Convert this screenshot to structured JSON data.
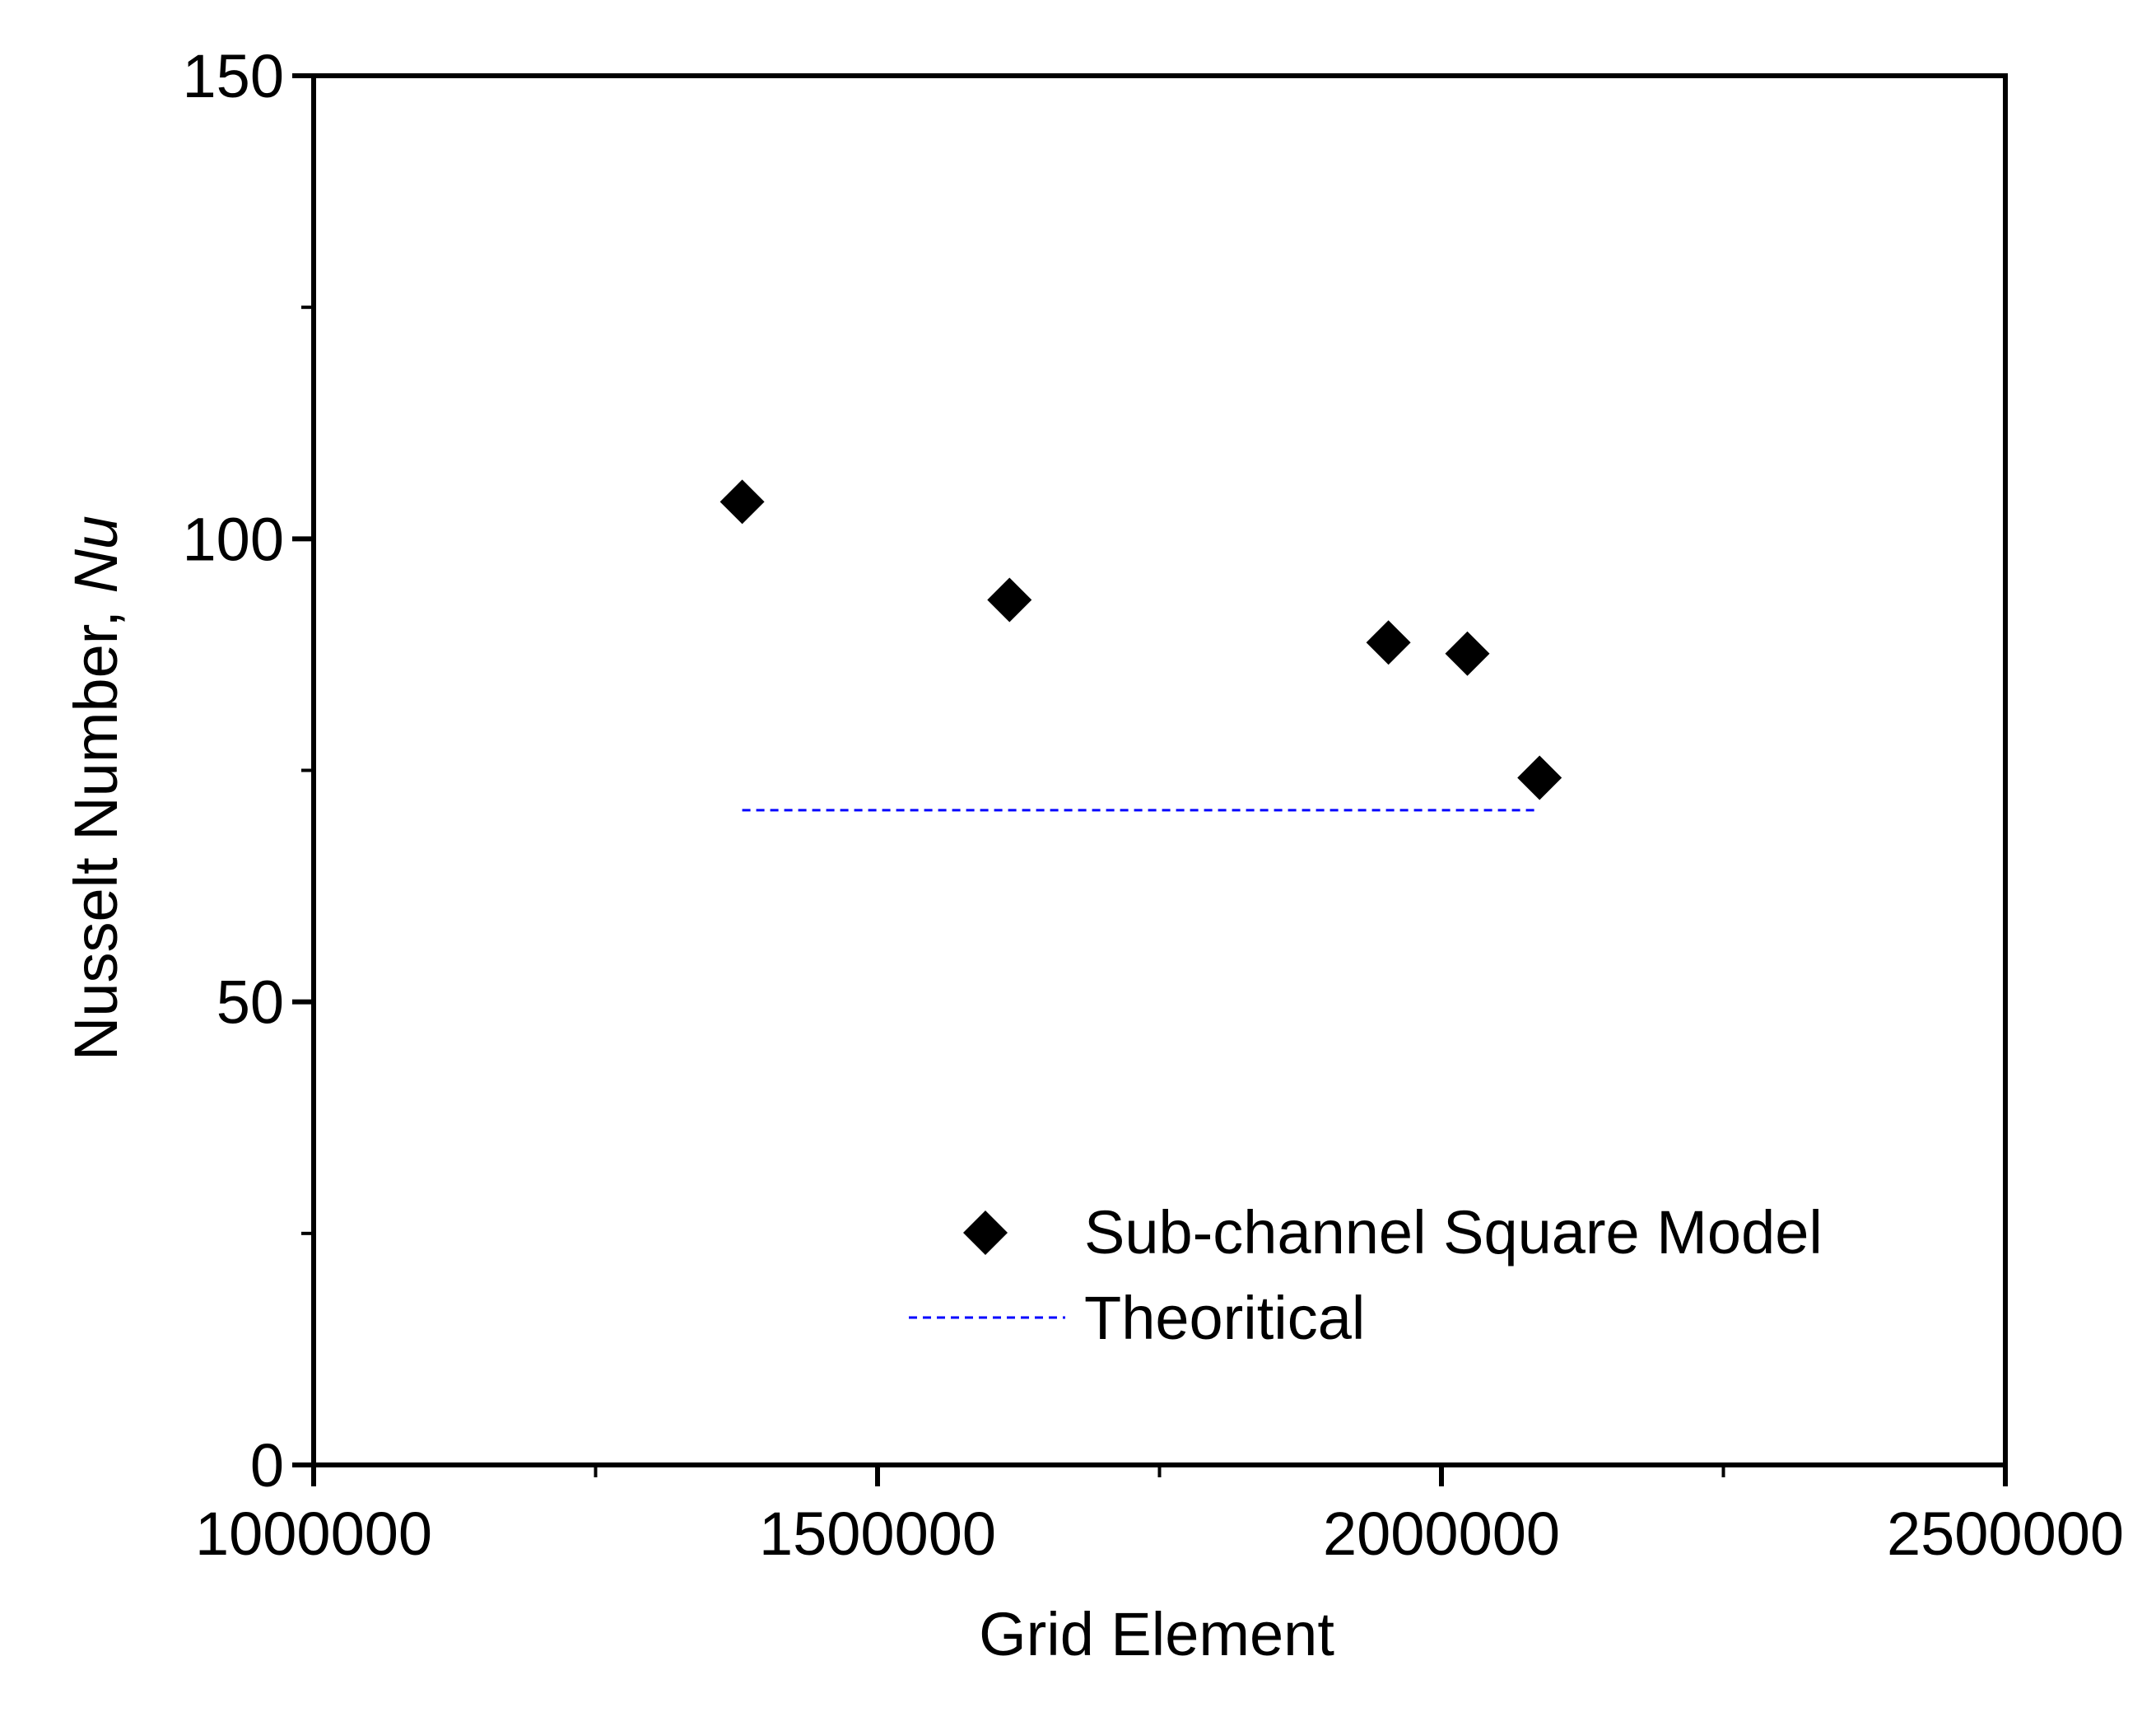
{
  "chart_data": {
    "type": "scatter",
    "title": "",
    "xlabel": "Grid Element",
    "ylabel": "Nusselt Number, ",
    "ylabel_italic": "Nu",
    "xlim": [
      1000000,
      2500000
    ],
    "ylim": [
      0,
      150
    ],
    "x_ticks": [
      1000000,
      1500000,
      2000000,
      2500000
    ],
    "x_tick_labels": [
      "1000000",
      "1500000",
      "2000000",
      "2500000"
    ],
    "y_ticks": [
      0,
      50,
      100,
      150
    ],
    "y_tick_labels": [
      "0",
      "50",
      "100",
      "150"
    ],
    "x_minor_ticks": [
      1250000,
      1750000,
      2250000
    ],
    "y_minor_ticks": [
      25,
      75,
      125
    ],
    "grid": false,
    "legend_position": "bottom-right",
    "series": [
      {
        "name": "Sub-channel Square Model",
        "kind": "scatter",
        "marker": "diamond",
        "color": "#000000",
        "x": [
          1380000,
          1617000,
          1953000,
          2023000,
          2087000
        ],
        "y": [
          104,
          93.4,
          88.8,
          87.6,
          74.2
        ]
      },
      {
        "name": "Theoritical",
        "kind": "line",
        "style": "dashed",
        "color": "#0000ff",
        "x": [
          1380000,
          2087000
        ],
        "y": [
          70.7,
          70.7
        ]
      }
    ]
  }
}
